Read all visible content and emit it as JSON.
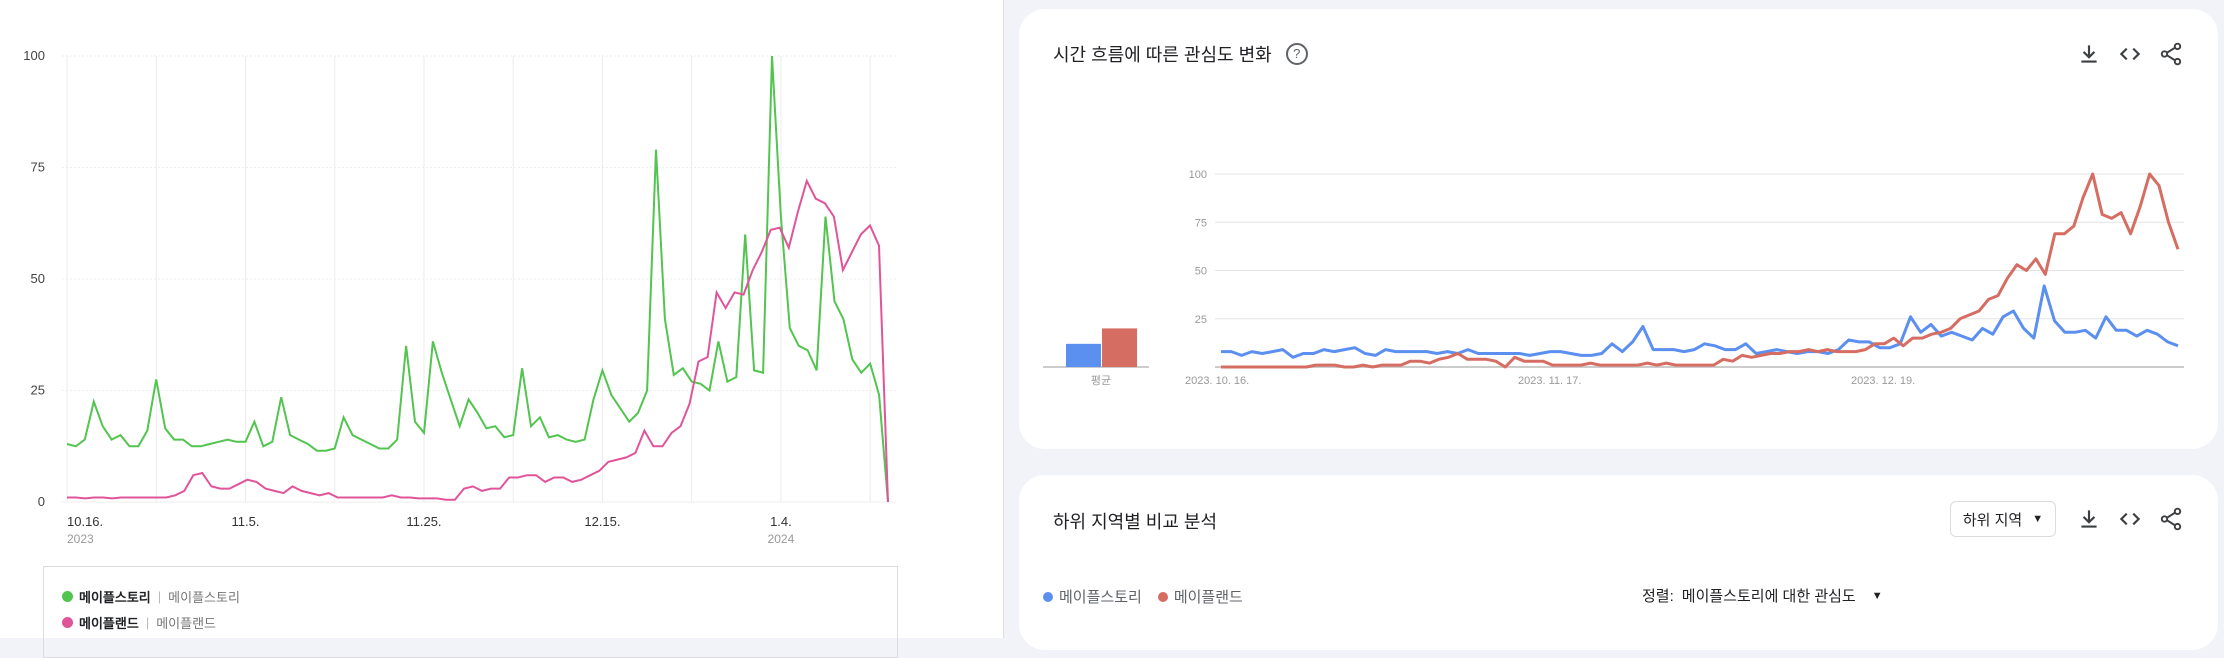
{
  "chart_data": [
    {
      "type": "line",
      "x_tick_labels": [
        "10.16.",
        "11.5.",
        "11.25.",
        "12.15.",
        "1.4."
      ],
      "x_year_labels": [
        "2023",
        "",
        "",
        "",
        "2024"
      ],
      "y_ticks": [
        "100",
        "75",
        "50",
        "25",
        "0"
      ],
      "ylim": [
        0,
        100
      ],
      "grid": true,
      "legend_placement": "bottom",
      "series": [
        {
          "name": "메이플스토리",
          "subname": "메이플스토리",
          "color": "#52c44f",
          "values": [
            13,
            12.5,
            14,
            22.5,
            17,
            14,
            15,
            12.5,
            12.5,
            16,
            27.5,
            16.5,
            14,
            14,
            12.5,
            12.5,
            13,
            13.5,
            14,
            13.5,
            13.5,
            18,
            12.5,
            13.5,
            23.5,
            15,
            14,
            13,
            11.5,
            11.5,
            12,
            19,
            15,
            14,
            13,
            12,
            12,
            14,
            35,
            18,
            15.5,
            36,
            29,
            23,
            17,
            23,
            20,
            16.5,
            17,
            14.5,
            15,
            30,
            17,
            19,
            14.5,
            15,
            14,
            13.5,
            14,
            23,
            29.5,
            24,
            21,
            18,
            20,
            25,
            79,
            41,
            28.5,
            30,
            27,
            26.5,
            25,
            36,
            27,
            28,
            60,
            29.5,
            29,
            100,
            64,
            39,
            35,
            34,
            29.5,
            64,
            45,
            41,
            32,
            29,
            31,
            24,
            0
          ]
        },
        {
          "name": "메이플랜드",
          "subname": "메이플랜드",
          "color": "#e0559a",
          "values": [
            1,
            1,
            0.8,
            1,
            1,
            0.8,
            1,
            1,
            1,
            1,
            1,
            1,
            1.5,
            2.5,
            6,
            6.5,
            3.5,
            3,
            3,
            4,
            5,
            4.5,
            3,
            2.5,
            2,
            3.5,
            2.5,
            2,
            1.5,
            2,
            1,
            1,
            1,
            1,
            1,
            1,
            1.5,
            1,
            1,
            0.8,
            0.8,
            0.8,
            0.5,
            0.5,
            3,
            3.5,
            2.5,
            3,
            3,
            5.5,
            5.5,
            6,
            6,
            4.5,
            5.5,
            5.5,
            4.5,
            5,
            6,
            7,
            9,
            9.5,
            10,
            11,
            16,
            12.5,
            12.5,
            15.5,
            17,
            22,
            31.5,
            32.5,
            47,
            43.5,
            47,
            46.5,
            52,
            56,
            61,
            61.5,
            57,
            65,
            72,
            68,
            67,
            64,
            52,
            56,
            60,
            62,
            57.5,
            0
          ]
        }
      ]
    },
    {
      "type": "line",
      "title": "시간 흐름에 따른 관심도 변화",
      "x_tick_labels": [
        "2023. 10. 16.",
        "2023. 11. 17.",
        "2023. 12. 19."
      ],
      "y_ticks": [
        "100",
        "75",
        "50",
        "25"
      ],
      "ylim": [
        0,
        100
      ],
      "grid": true,
      "average_label": "평균",
      "averages": [
        12,
        20
      ],
      "series": [
        {
          "name": "메이플스토리",
          "color": "#5b8ff0",
          "values": [
            8,
            8,
            6,
            8,
            7,
            8,
            9,
            5,
            7,
            7,
            9,
            8,
            9,
            10,
            7,
            6,
            9,
            8,
            8,
            8,
            8,
            7,
            8,
            7,
            9,
            7,
            7,
            7,
            7,
            7,
            6,
            7,
            8,
            8,
            7,
            6,
            6,
            7,
            12,
            8,
            13,
            21,
            9,
            9,
            9,
            8,
            9,
            12,
            11,
            9,
            9,
            12,
            7,
            8,
            9,
            8,
            7,
            8,
            8,
            7,
            9,
            14,
            13,
            13,
            10,
            10,
            12,
            26,
            18,
            22,
            16,
            18,
            16,
            14,
            20,
            17,
            26,
            29,
            20,
            15,
            42,
            24,
            18,
            18,
            19,
            15,
            26,
            19,
            19,
            16,
            19,
            17,
            13,
            11
          ]
        },
        {
          "name": "메이플랜드",
          "color": "#d66d62",
          "values": [
            0,
            0,
            0,
            0,
            0,
            0,
            0,
            0,
            0,
            0,
            1,
            1,
            1,
            0,
            0,
            1,
            0,
            1,
            1,
            1,
            3,
            3,
            2,
            4,
            5,
            7,
            4,
            4,
            4,
            3,
            0,
            5,
            3,
            3,
            3,
            1,
            1,
            1,
            1,
            2,
            1,
            1,
            1,
            1,
            1,
            2,
            1,
            2,
            1,
            1,
            1,
            1,
            1,
            4,
            3,
            6,
            5,
            6,
            7,
            7,
            8,
            8,
            9,
            8,
            9,
            8,
            8,
            8,
            9,
            12,
            12,
            15,
            11,
            15,
            15,
            17,
            18,
            20,
            25,
            27,
            29,
            35,
            37,
            46,
            53,
            50,
            56,
            48,
            69,
            69,
            73,
            88,
            100,
            79,
            77,
            80,
            69,
            83,
            100,
            94,
            75,
            61
          ]
        }
      ]
    }
  ],
  "panel1": {
    "title": "시간 흐름에 따른 관심도 변화",
    "help": "?",
    "icons": [
      "download-icon",
      "embed-code-icon",
      "share-icon"
    ]
  },
  "panel2": {
    "title": "하위 지역별 비교 분석",
    "dropdown": "하위 지역",
    "legend": [
      "메이플스토리",
      "메이플랜드"
    ],
    "sort_label": "정렬:",
    "sort_value": "메이플스토리에 대한 관심도"
  }
}
